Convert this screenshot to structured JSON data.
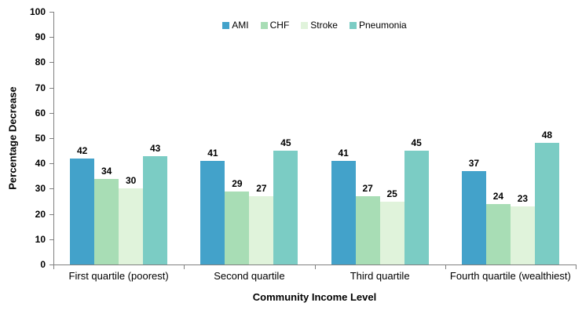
{
  "chart_data": {
    "type": "bar",
    "categories": [
      "First quartile (poorest)",
      "Second quartile",
      "Third quartile",
      "Fourth quartile (wealthiest)"
    ],
    "series": [
      {
        "name": "AMI",
        "color": "#43A2CA",
        "values": [
          42,
          41,
          41,
          37
        ]
      },
      {
        "name": "CHF",
        "color": "#A8DDB5",
        "values": [
          34,
          29,
          27,
          24
        ]
      },
      {
        "name": "Stroke",
        "color": "#E0F3DB",
        "values": [
          30,
          27,
          25,
          23
        ]
      },
      {
        "name": "Pneumonia",
        "color": "#7BCCC4",
        "values": [
          43,
          45,
          45,
          48
        ]
      }
    ],
    "title": "",
    "xlabel": "Community Income Level",
    "ylabel": "Percentage Decrease",
    "ylim": [
      0,
      100
    ],
    "ytick_step": 10,
    "ytick_labels": [
      "0",
      "10",
      "20",
      "30",
      "40",
      "50",
      "60",
      "70",
      "80",
      "90",
      "100"
    ],
    "grid": false,
    "legend_position": "top-center",
    "bar_value_labels_shown": true,
    "axis_color": "#808080",
    "text_color": "#000000",
    "background_color": "#FFFFFF"
  }
}
